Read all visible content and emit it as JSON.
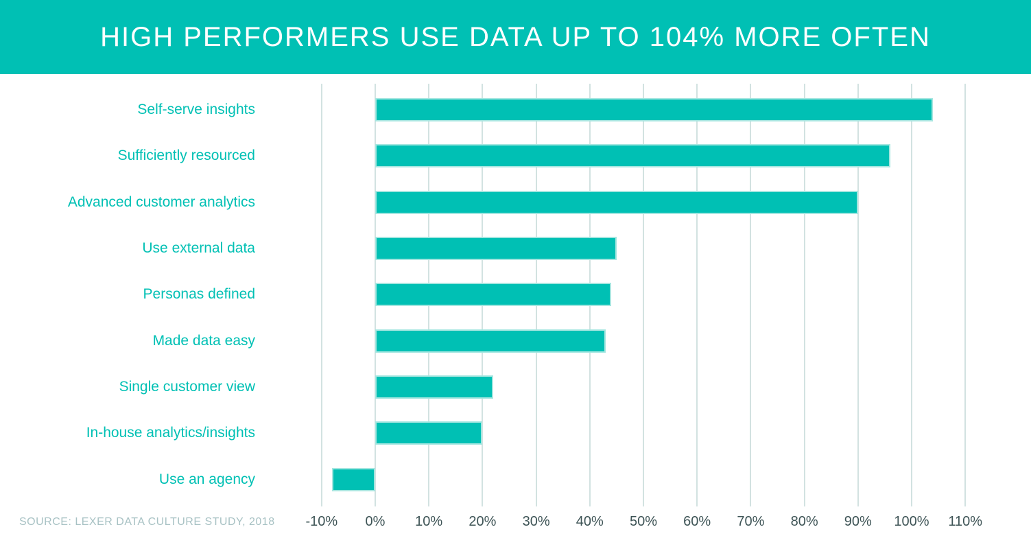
{
  "header": {
    "title": "HIGH PERFORMERS USE DATA UP TO 104% MORE OFTEN"
  },
  "source_note": "SOURCE: LEXER DATA CULTURE STUDY, 2018",
  "colors": {
    "teal": "#00C0B4",
    "bar_stroke": "#A5E6E0",
    "gridline": "#D2E2E1",
    "axis_label_text": "#3E5456",
    "source_text": "#A8C2C4",
    "title_text": "#FFFFFF",
    "background": "#FFFFFF"
  },
  "chart_data": {
    "type": "bar",
    "orientation": "horizontal",
    "title": "HIGH PERFORMERS USE DATA UP TO 104% MORE OFTEN",
    "categories": [
      "Self-serve insights",
      "Sufficiently resourced",
      "Advanced customer analytics",
      "Use external data",
      "Personas defined",
      "Made data easy",
      "Single customer view",
      "In-house analytics/insights",
      "Use an agency"
    ],
    "values": [
      104,
      96,
      90,
      45,
      44,
      43,
      22,
      20,
      -8
    ],
    "unit": "%",
    "xlabel": "",
    "ylabel": "",
    "x_axis": {
      "min": -10,
      "max": 110,
      "step": 10,
      "tick_values": [
        -10,
        0,
        10,
        20,
        30,
        40,
        50,
        60,
        70,
        80,
        90,
        100,
        110
      ],
      "tick_labels": [
        "-10%",
        "0%",
        "10%",
        "20%",
        "30%",
        "40%",
        "50%",
        "60%",
        "70%",
        "80%",
        "90%",
        "100%",
        "110%"
      ]
    },
    "grid": "vertical-only",
    "legend": "none"
  }
}
